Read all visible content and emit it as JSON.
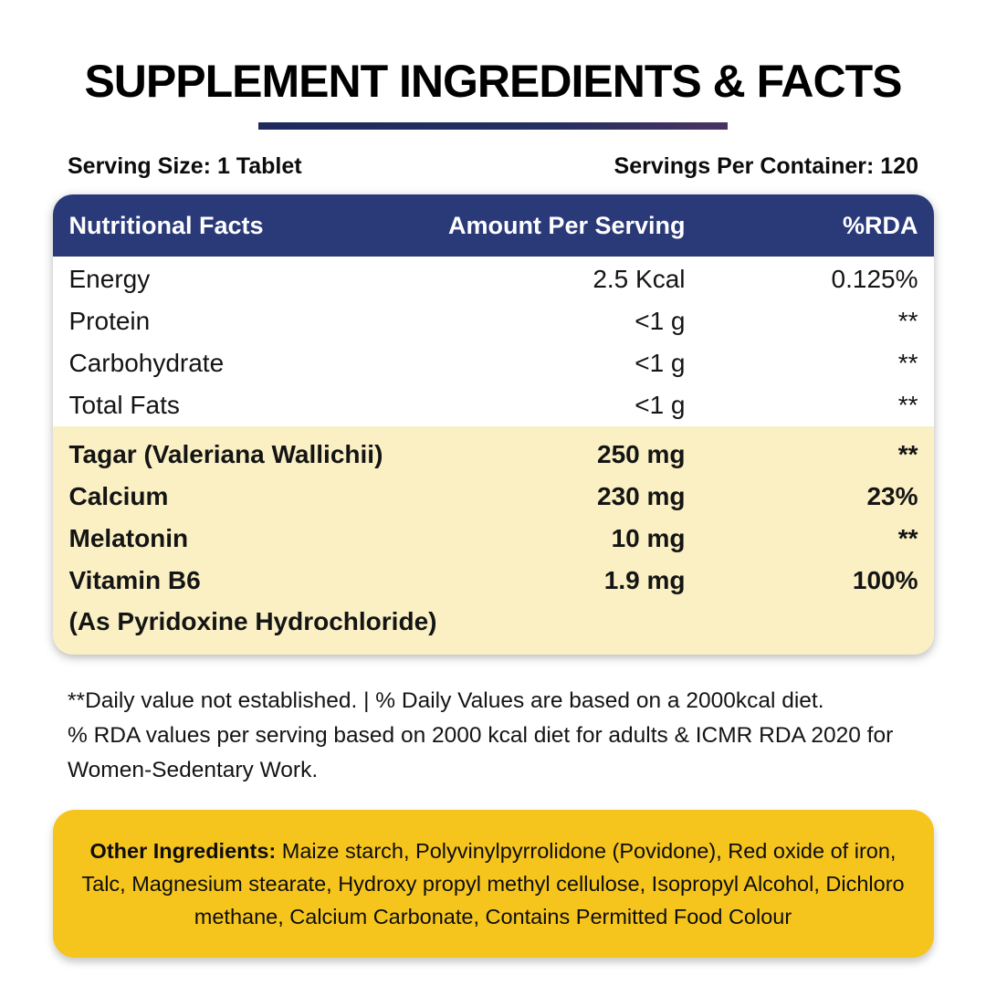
{
  "header": {
    "title": "SUPPLEMENT INGREDIENTS & FACTS",
    "serving_size": "Serving Size: 1 Tablet",
    "servings_per_container": "Servings Per Container: 120"
  },
  "table": {
    "columns": {
      "name": "Nutritional Facts",
      "amount": "Amount Per Serving",
      "rda": "%RDA"
    },
    "basic_rows": [
      {
        "name": "Energy",
        "amount": "2.5 Kcal",
        "rda": "0.125%"
      },
      {
        "name": "Protein",
        "amount": "<1 g",
        "rda": "**"
      },
      {
        "name": "Carbohydrate",
        "amount": "<1 g",
        "rda": "**"
      },
      {
        "name": "Total Fats",
        "amount": "<1 g",
        "rda": "**"
      }
    ],
    "active_rows": [
      {
        "name": "Tagar (Valeriana Wallichii)",
        "amount": "250 mg",
        "rda": "**"
      },
      {
        "name": "Calcium",
        "amount": "230 mg",
        "rda": "23%"
      },
      {
        "name": "Melatonin",
        "amount": "10 mg",
        "rda": "**"
      },
      {
        "name": "Vitamin B6",
        "subname": "(As Pyridoxine Hydrochloride)",
        "amount": "1.9 mg",
        "rda": "100%"
      }
    ]
  },
  "footnotes": {
    "line1": "**Daily value not established.  |  % Daily Values are based on a 2000kcal diet.",
    "line2": "% RDA values per serving based on 2000 kcal diet for adults & ICMR RDA 2020 for Women-Sedentary Work."
  },
  "other_ingredients": {
    "label": "Other Ingredients:",
    "text": "Maize starch, Polyvinylpyrrolidone (Povidone), Red oxide of iron, Talc, Magnesium stearate, Hydroxy propyl methyl cellulose, Isopropyl Alcohol, Dichloro methane, Calcium Carbonate, Contains Permitted Food Colour"
  },
  "colors": {
    "header_navy": "#2a3a78",
    "highlight_yellow": "#faf0c4",
    "ingredients_gold": "#f6c51d",
    "underline_gradient_start": "#1e2a5e",
    "underline_gradient_end": "#4a3263"
  }
}
